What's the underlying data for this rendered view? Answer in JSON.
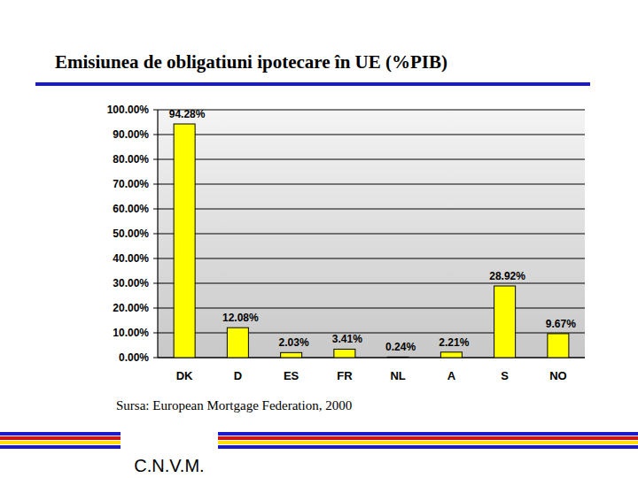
{
  "chart_data": {
    "type": "bar",
    "title": "Emisiunea de obligatiuni ipotecare în UE (%PIB)",
    "categories": [
      "DK",
      "D",
      "ES",
      "FR",
      "NL",
      "A",
      "S",
      "NO"
    ],
    "values": [
      94.28,
      12.08,
      2.03,
      3.41,
      0.24,
      2.21,
      28.92,
      9.67
    ],
    "value_labels": [
      "94.28%",
      "12.08%",
      "2.03%",
      "3.41%",
      "0.24%",
      "2.21%",
      "28.92%",
      "9.67%"
    ],
    "color": "#ffff00",
    "ylim": [
      0,
      100
    ],
    "yticks": [
      {
        "value": 0,
        "label": "0.00%"
      },
      {
        "value": 10,
        "label": "10.00%"
      },
      {
        "value": 20,
        "label": "20.00%"
      },
      {
        "value": 30,
        "label": "30.00%"
      },
      {
        "value": 40,
        "label": "40.00%"
      },
      {
        "value": 50,
        "label": "50.00%"
      },
      {
        "value": 60,
        "label": "60.00%"
      },
      {
        "value": 70,
        "label": "70.00%"
      },
      {
        "value": 80,
        "label": "80.00%"
      },
      {
        "value": 90,
        "label": "90.00%"
      },
      {
        "value": 100,
        "label": "100.00%"
      }
    ],
    "grid": true,
    "data_labels": true
  },
  "footer": {
    "source": "Sursa: European Mortgage Federation, 2000",
    "logo": "C.N.V.M."
  }
}
